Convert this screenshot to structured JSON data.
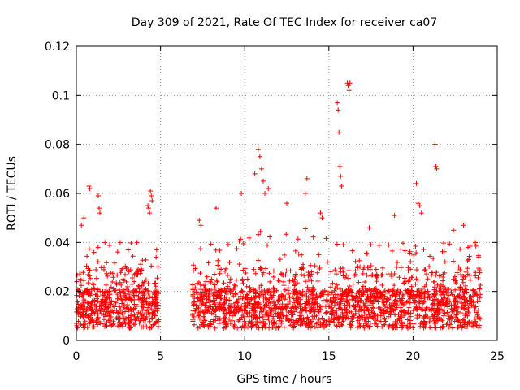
{
  "chart_data": {
    "type": "scatter",
    "title": "Day 309 of 2021, Rate Of TEC Index for receiver ca07",
    "xlabel": "GPS time / hours",
    "ylabel": "ROTI / TECUs",
    "xlim": [
      0,
      25
    ],
    "ylim": [
      0,
      0.12
    ],
    "xticks": [
      "0",
      "5",
      "10",
      "15",
      "20",
      "25"
    ],
    "yticks": [
      "0",
      "0.02",
      "0.04",
      "0.06",
      "0.08",
      "0.1",
      "0.12"
    ],
    "grid": true,
    "marker": "+",
    "color": "#ff0000",
    "data_gap": [
      4.9,
      6.9
    ],
    "series": [
      {
        "points": [
          [
            0.3,
            0.047
          ],
          [
            0.45,
            0.05
          ],
          [
            0.75,
            0.063
          ],
          [
            0.8,
            0.062
          ],
          [
            1.3,
            0.059
          ],
          [
            1.35,
            0.054
          ],
          [
            1.4,
            0.052
          ],
          [
            1.7,
            0.04
          ],
          [
            2.6,
            0.04
          ],
          [
            3.6,
            0.04
          ],
          [
            4.25,
            0.055
          ],
          [
            4.3,
            0.054
          ],
          [
            4.35,
            0.052
          ],
          [
            4.4,
            0.061
          ],
          [
            4.45,
            0.059
          ],
          [
            4.5,
            0.057
          ],
          [
            7.3,
            0.049
          ],
          [
            7.4,
            0.047
          ],
          [
            8.3,
            0.054
          ],
          [
            9.8,
            0.06
          ],
          [
            10.6,
            0.068
          ],
          [
            10.8,
            0.078
          ],
          [
            10.9,
            0.075
          ],
          [
            11.0,
            0.07
          ],
          [
            11.1,
            0.065
          ],
          [
            11.2,
            0.06
          ],
          [
            11.4,
            0.062
          ],
          [
            12.5,
            0.056
          ],
          [
            13.6,
            0.06
          ],
          [
            13.7,
            0.066
          ],
          [
            14.5,
            0.052
          ],
          [
            14.6,
            0.05
          ],
          [
            15.5,
            0.097
          ],
          [
            15.55,
            0.094
          ],
          [
            15.6,
            0.085
          ],
          [
            15.65,
            0.071
          ],
          [
            15.7,
            0.067
          ],
          [
            15.75,
            0.063
          ],
          [
            16.1,
            0.105
          ],
          [
            16.15,
            0.104
          ],
          [
            16.2,
            0.102
          ],
          [
            16.25,
            0.105
          ],
          [
            17.4,
            0.046
          ],
          [
            18.9,
            0.051
          ],
          [
            20.2,
            0.064
          ],
          [
            20.3,
            0.056
          ],
          [
            20.4,
            0.055
          ],
          [
            20.5,
            0.052
          ],
          [
            21.3,
            0.08
          ],
          [
            21.35,
            0.071
          ],
          [
            21.4,
            0.07
          ],
          [
            22.4,
            0.045
          ],
          [
            23.0,
            0.047
          ],
          [
            23.7,
            0.04
          ],
          [
            23.9,
            0.034
          ]
        ]
      }
    ]
  }
}
